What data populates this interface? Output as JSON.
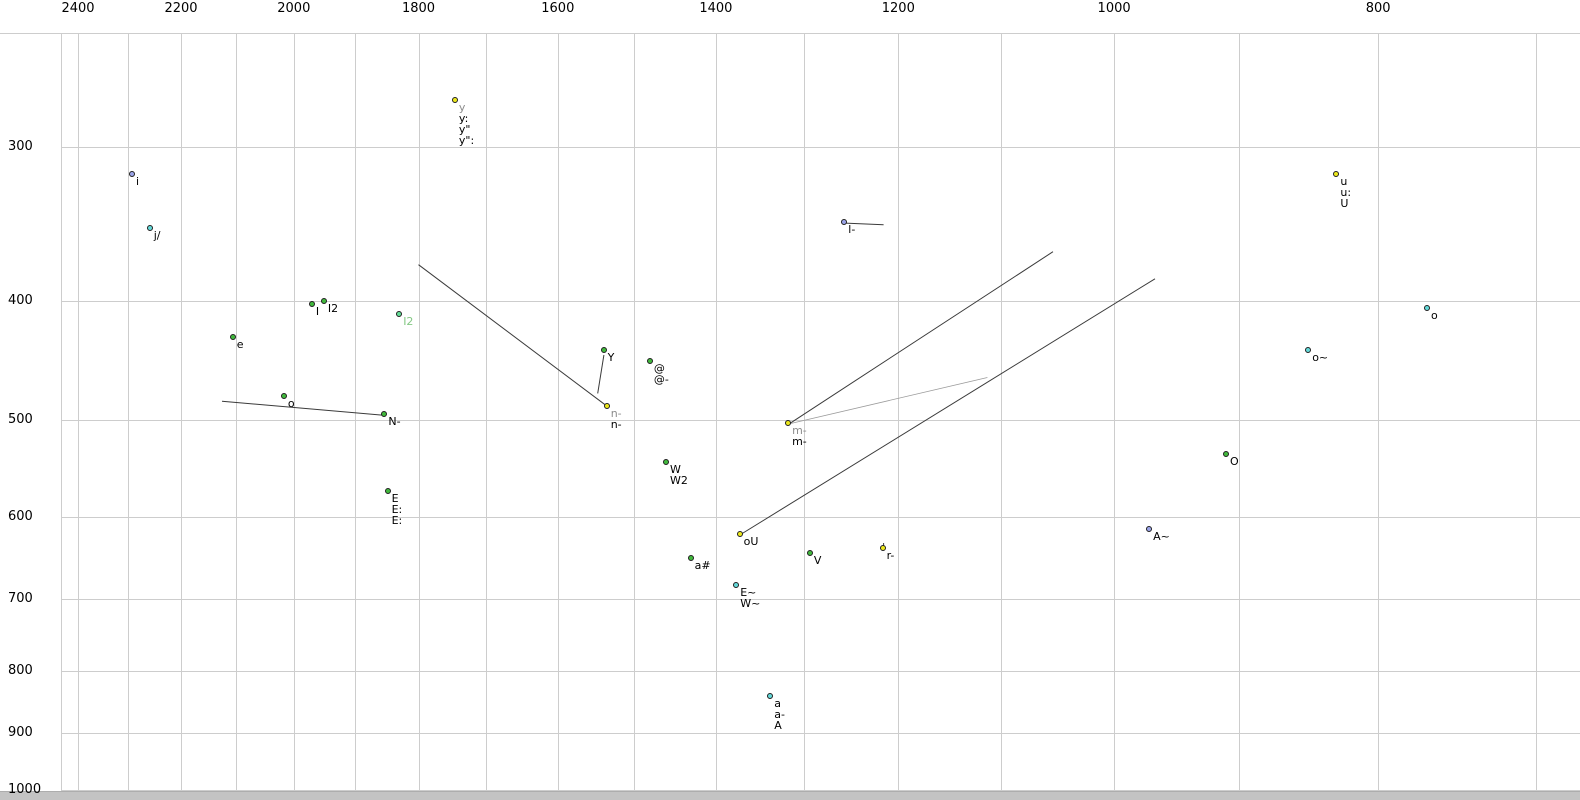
{
  "chart_data": {
    "type": "scatter",
    "title": "",
    "description": "Vowel formant plot (F2 horizontal reversed log scale, F1 vertical log scale, values in Hz)",
    "x_axis": {
      "unit": "Hz",
      "scale": "log",
      "direction": "reversed",
      "ticks": [
        2400,
        2200,
        2000,
        1800,
        1600,
        1400,
        1200,
        1000,
        800
      ],
      "gridlines": [
        2400,
        2300,
        2200,
        2100,
        2000,
        1900,
        1800,
        1700,
        1600,
        1500,
        1400,
        1300,
        1200,
        1100,
        1000,
        900,
        800,
        700
      ]
    },
    "y_axis": {
      "unit": "Hz",
      "scale": "log",
      "direction": "down",
      "ticks": [
        300,
        400,
        500,
        600,
        700,
        800,
        900,
        1000
      ],
      "gridlines": [
        300,
        400,
        500,
        600,
        700,
        800,
        900,
        1000
      ]
    },
    "points": [
      {
        "id": "y",
        "f2": 1744,
        "f1": 275,
        "color": "yellow",
        "labels": [
          {
            "t": "y",
            "c": "muted"
          },
          {
            "t": "y:",
            "c": "ink"
          },
          {
            "t": "y\"",
            "c": "ink"
          },
          {
            "t": "y\":",
            "c": "ink"
          }
        ]
      },
      {
        "id": "i",
        "f2": 2291,
        "f1": 316,
        "color": "periwinkle",
        "labels": [
          {
            "t": "i",
            "c": "ink"
          }
        ]
      },
      {
        "id": "u",
        "f2": 828,
        "f1": 316,
        "color": "yellow",
        "labels": [
          {
            "t": "u",
            "c": "ink"
          },
          {
            "t": "u:",
            "c": "ink"
          },
          {
            "t": "U",
            "c": "ink"
          }
        ]
      },
      {
        "id": "j",
        "f2": 2257,
        "f1": 350,
        "color": "cyan",
        "labels": [
          {
            "t": "j/",
            "c": "ink"
          }
        ]
      },
      {
        "id": "l",
        "f2": 1255,
        "f1": 346,
        "color": "periwinkle",
        "labels": [
          {
            "t": "l-",
            "c": "ink"
          }
        ]
      },
      {
        "id": "I",
        "f2": 1968,
        "f1": 403,
        "color": "green",
        "labels": [
          {
            "t": "I",
            "c": "ink"
          }
        ]
      },
      {
        "id": "I2",
        "f2": 1948,
        "f1": 401,
        "color": "green",
        "labels": [
          {
            "t": "I2",
            "c": "ink"
          }
        ]
      },
      {
        "id": "I2b",
        "f2": 1828,
        "f1": 411,
        "color": "spring",
        "labels": [
          {
            "t": "I2",
            "c": "spring"
          }
        ]
      },
      {
        "id": "e",
        "f2": 2104,
        "f1": 429,
        "color": "green",
        "labels": [
          {
            "t": "e",
            "c": "ink"
          }
        ]
      },
      {
        "id": "Y",
        "f2": 1538,
        "f1": 440,
        "color": "green",
        "labels": [
          {
            "t": "Y",
            "c": "ink"
          }
        ]
      },
      {
        "id": "schwa",
        "f2": 1479,
        "f1": 449,
        "color": "green",
        "labels": [
          {
            "t": "@",
            "c": "ink"
          },
          {
            "t": "@-",
            "c": "ink"
          }
        ]
      },
      {
        "id": "n",
        "f2": 1534,
        "f1": 488,
        "color": "yellow",
        "labels": [
          {
            "t": "n-",
            "c": "muted"
          },
          {
            "t": "n-",
            "c": "ink"
          }
        ]
      },
      {
        "id": "o1",
        "f2": 2015,
        "f1": 479,
        "color": "green",
        "labels": [
          {
            "t": "o",
            "c": "ink"
          }
        ]
      },
      {
        "id": "N",
        "f2": 1851,
        "f1": 496,
        "color": "green",
        "labels": [
          {
            "t": "N-",
            "c": "ink"
          }
        ]
      },
      {
        "id": "m",
        "f2": 1316,
        "f1": 504,
        "color": "yellow",
        "labels": [
          {
            "t": "m-",
            "c": "muted"
          },
          {
            "t": "m-",
            "c": "ink"
          }
        ]
      },
      {
        "id": "W",
        "f2": 1459,
        "f1": 542,
        "color": "green",
        "labels": [
          {
            "t": "W",
            "c": "ink"
          },
          {
            "t": "W2",
            "c": "ink"
          }
        ]
      },
      {
        "id": "E",
        "f2": 1846,
        "f1": 573,
        "color": "green",
        "labels": [
          {
            "t": "E",
            "c": "ink"
          },
          {
            "t": "E:",
            "c": "ink"
          },
          {
            "t": "E:",
            "c": "ink"
          }
        ]
      },
      {
        "id": "oU",
        "f2": 1371,
        "f1": 620,
        "color": "yellow",
        "labels": [
          {
            "t": "oU",
            "c": "ink"
          }
        ]
      },
      {
        "id": "A-nas",
        "f2": 970,
        "f1": 615,
        "color": "periwinkle",
        "labels": [
          {
            "t": "A~",
            "c": "ink"
          }
        ]
      },
      {
        "id": "a-hash",
        "f2": 1429,
        "f1": 649,
        "color": "green",
        "labels": [
          {
            "t": "a#",
            "c": "ink"
          }
        ]
      },
      {
        "id": "V",
        "f2": 1292,
        "f1": 643,
        "color": "green",
        "labels": [
          {
            "t": "V",
            "c": "ink"
          }
        ]
      },
      {
        "id": "r",
        "f2": 1215,
        "f1": 637,
        "color": "yellow",
        "labels": [
          {
            "t": "r-",
            "c": "ink"
          }
        ]
      },
      {
        "id": "E-nas",
        "f2": 1375,
        "f1": 683,
        "color": "cyan",
        "labels": [
          {
            "t": "E~",
            "c": "ink"
          },
          {
            "t": "W~",
            "c": "ink"
          }
        ]
      },
      {
        "id": "a",
        "f2": 1336,
        "f1": 840,
        "color": "cyan",
        "labels": [
          {
            "t": "a",
            "c": "ink"
          },
          {
            "t": "a-",
            "c": "ink"
          },
          {
            "t": "A",
            "c": "ink"
          }
        ]
      },
      {
        "id": "O",
        "f2": 909,
        "f1": 534,
        "color": "green",
        "labels": [
          {
            "t": "O",
            "c": "ink"
          }
        ]
      },
      {
        "id": "o-nas",
        "f2": 848,
        "f1": 440,
        "color": "cyan",
        "labels": [
          {
            "t": "o~",
            "c": "ink"
          }
        ]
      },
      {
        "id": "o2",
        "f2": 767,
        "f1": 406,
        "color": "cyan",
        "labels": [
          {
            "t": "o",
            "c": "ink"
          }
        ]
      }
    ],
    "segments": [
      {
        "id": "l",
        "from": [
          1255,
          346
        ],
        "to": [
          1215,
          347
        ],
        "thin": false
      },
      {
        "id": "N",
        "from": [
          2125,
          483
        ],
        "to": [
          1851,
          496
        ],
        "thin": false
      },
      {
        "id": "n",
        "from": [
          1800,
          374
        ],
        "to": [
          1534,
          488
        ],
        "thin": false
      },
      {
        "id": "Y",
        "from": [
          1539,
          443
        ],
        "to": [
          1547,
          476
        ],
        "thin": false
      },
      {
        "id": "m-1",
        "from": [
          1316,
          504
        ],
        "to": [
          1053,
          365
        ],
        "thin": false
      },
      {
        "id": "m-2",
        "from": [
          1316,
          504
        ],
        "to": [
          1113,
          462
        ],
        "thin": true
      },
      {
        "id": "oU",
        "from": [
          1371,
          620
        ],
        "to": [
          966,
          384
        ],
        "thin": false
      },
      {
        "id": "r",
        "from": [
          1215,
          630
        ],
        "to": [
          1215,
          637
        ],
        "thin": false
      }
    ]
  },
  "colors": {
    "grid": "#cdcdcd",
    "bottom_bar": "#c3c3c3",
    "axis_text": "#000000",
    "point_stroke": "#1f1f1f",
    "line": "#3a3a3a",
    "line_thin": "#9b9b9b",
    "fills": {
      "yellow": "#ece81c",
      "green": "#40b83c",
      "spring": "#63dd96",
      "cyan": "#64d8d8",
      "periwinkle": "#9aa3e8"
    },
    "label_colors": {
      "ink": "#000000",
      "muted": "#8c8c8c",
      "spring": "#84c884"
    }
  }
}
